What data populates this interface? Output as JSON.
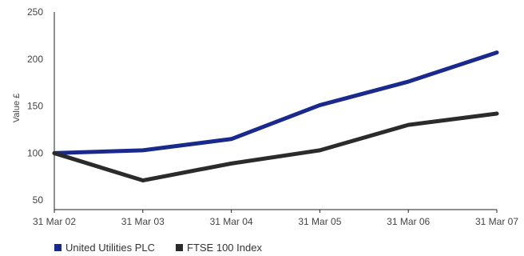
{
  "chart_data": {
    "type": "line",
    "title": "",
    "xlabel": "",
    "ylabel": "Value £",
    "categories": [
      "31 Mar 02",
      "31 Mar 03",
      "31 Mar 04",
      "31 Mar 05",
      "31 Mar 06",
      "31 Mar 07"
    ],
    "ylim": [
      40,
      250
    ],
    "yticks": [
      "50",
      "100",
      "150",
      "200",
      "250"
    ],
    "grid": false,
    "legend_position": "bottom-left",
    "series": [
      {
        "name": "United Utilities PLC",
        "color": "#1a2a8c",
        "values": [
          100,
          103,
          115,
          151,
          176,
          207
        ]
      },
      {
        "name": "FTSE 100 Index",
        "color": "#2b2b2b",
        "values": [
          100,
          71,
          89,
          103,
          130,
          142
        ]
      }
    ]
  }
}
